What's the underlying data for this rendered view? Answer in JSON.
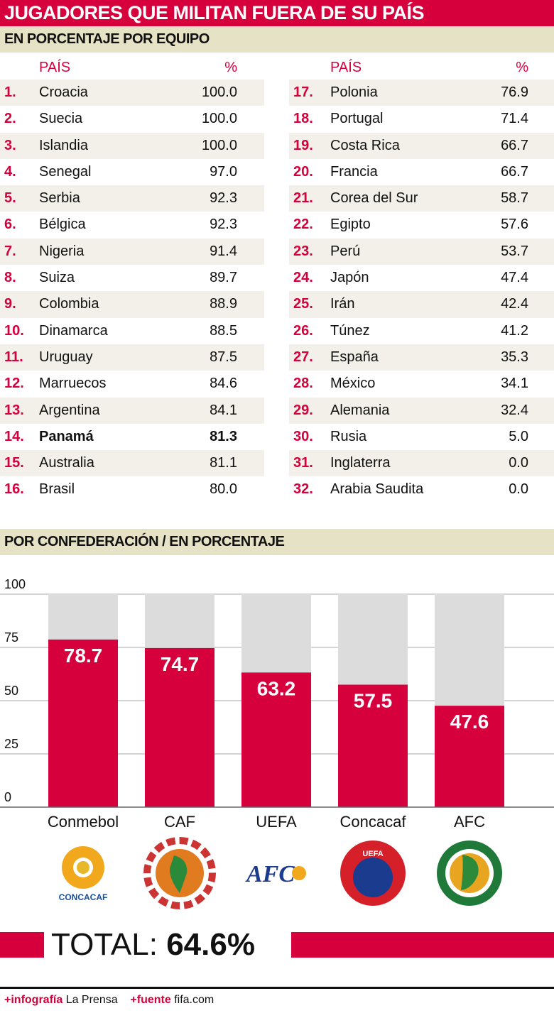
{
  "title": "JUGADORES QUE MILITAN FUERA DE SU PAÍS",
  "section1": "EN PORCENTAJE POR EQUIPO",
  "table": {
    "headers": {
      "country": "PAÍS",
      "pct": "%"
    },
    "rows": [
      {
        "rank": "1.",
        "country": "Croacia",
        "pct": "100.0"
      },
      {
        "rank": "2.",
        "country": "Suecia",
        "pct": "100.0"
      },
      {
        "rank": "3.",
        "country": "Islandia",
        "pct": "100.0"
      },
      {
        "rank": "4.",
        "country": "Senegal",
        "pct": "97.0"
      },
      {
        "rank": "5.",
        "country": "Serbia",
        "pct": "92.3"
      },
      {
        "rank": "6.",
        "country": "Bélgica",
        "pct": "92.3"
      },
      {
        "rank": "7.",
        "country": "Nigeria",
        "pct": "91.4"
      },
      {
        "rank": "8.",
        "country": "Suiza",
        "pct": "89.7"
      },
      {
        "rank": "9.",
        "country": "Colombia",
        "pct": "88.9"
      },
      {
        "rank": "10.",
        "country": "Dinamarca",
        "pct": "88.5"
      },
      {
        "rank": "11.",
        "country": "Uruguay",
        "pct": "87.5"
      },
      {
        "rank": "12.",
        "country": "Marruecos",
        "pct": "84.6"
      },
      {
        "rank": "13.",
        "country": "Argentina",
        "pct": "84.1"
      },
      {
        "rank": "14.",
        "country": "Panamá",
        "pct": "81.3",
        "highlight": true
      },
      {
        "rank": "15.",
        "country": "Australia",
        "pct": "81.1"
      },
      {
        "rank": "16.",
        "country": "Brasil",
        "pct": "80.0"
      },
      {
        "rank": "17.",
        "country": "Polonia",
        "pct": "76.9"
      },
      {
        "rank": "18.",
        "country": "Portugal",
        "pct": "71.4"
      },
      {
        "rank": "19.",
        "country": "Costa Rica",
        "pct": "66.7"
      },
      {
        "rank": "20.",
        "country": "Francia",
        "pct": "66.7"
      },
      {
        "rank": "21.",
        "country": "Corea del Sur",
        "pct": "58.7"
      },
      {
        "rank": "22.",
        "country": "Egipto",
        "pct": "57.6"
      },
      {
        "rank": "23.",
        "country": "Perú",
        "pct": "53.7"
      },
      {
        "rank": "24.",
        "country": "Japón",
        "pct": "47.4"
      },
      {
        "rank": "25.",
        "country": "Irán",
        "pct": "42.4"
      },
      {
        "rank": "26.",
        "country": "Túnez",
        "pct": "41.2"
      },
      {
        "rank": "27.",
        "country": "España",
        "pct": "35.3"
      },
      {
        "rank": "28.",
        "country": "México",
        "pct": "34.1"
      },
      {
        "rank": "29.",
        "country": "Alemania",
        "pct": "32.4"
      },
      {
        "rank": "30.",
        "country": "Rusia",
        "pct": "5.0"
      },
      {
        "rank": "31.",
        "country": "Inglaterra",
        "pct": "0.0"
      },
      {
        "rank": "32.",
        "country": "Arabia Saudita",
        "pct": "0.0"
      }
    ]
  },
  "section2": "POR CONFEDERACIÓN / EN PORCENTAJE",
  "chart_data": {
    "type": "bar",
    "categories": [
      "Conmebol",
      "CAF",
      "UEFA",
      "Concacaf",
      "AFC"
    ],
    "values": [
      78.7,
      74.7,
      63.2,
      57.5,
      47.6
    ],
    "value_labels": [
      "78.7",
      "74.7",
      "63.2",
      "57.5",
      "47.6"
    ],
    "yticks": [
      "0",
      "25",
      "50",
      "75",
      "100"
    ],
    "ylim": [
      0,
      100
    ],
    "grid": true,
    "colors": {
      "bar": "#d5003c",
      "background_bar": "#dcdcdc"
    },
    "logos": [
      "concacaf-logo",
      "conmebol-logo",
      "afc-logo",
      "uefa-logo",
      "caf-logo"
    ]
  },
  "total": {
    "label": "TOTAL:",
    "value": "64.6%"
  },
  "footer": {
    "infografia_label": "+infografía",
    "infografia": "La Prensa",
    "fuente_label": "+fuente",
    "fuente": "fifa.com"
  },
  "colors": {
    "accent": "#d5003c",
    "band": "#e6e2c6"
  }
}
